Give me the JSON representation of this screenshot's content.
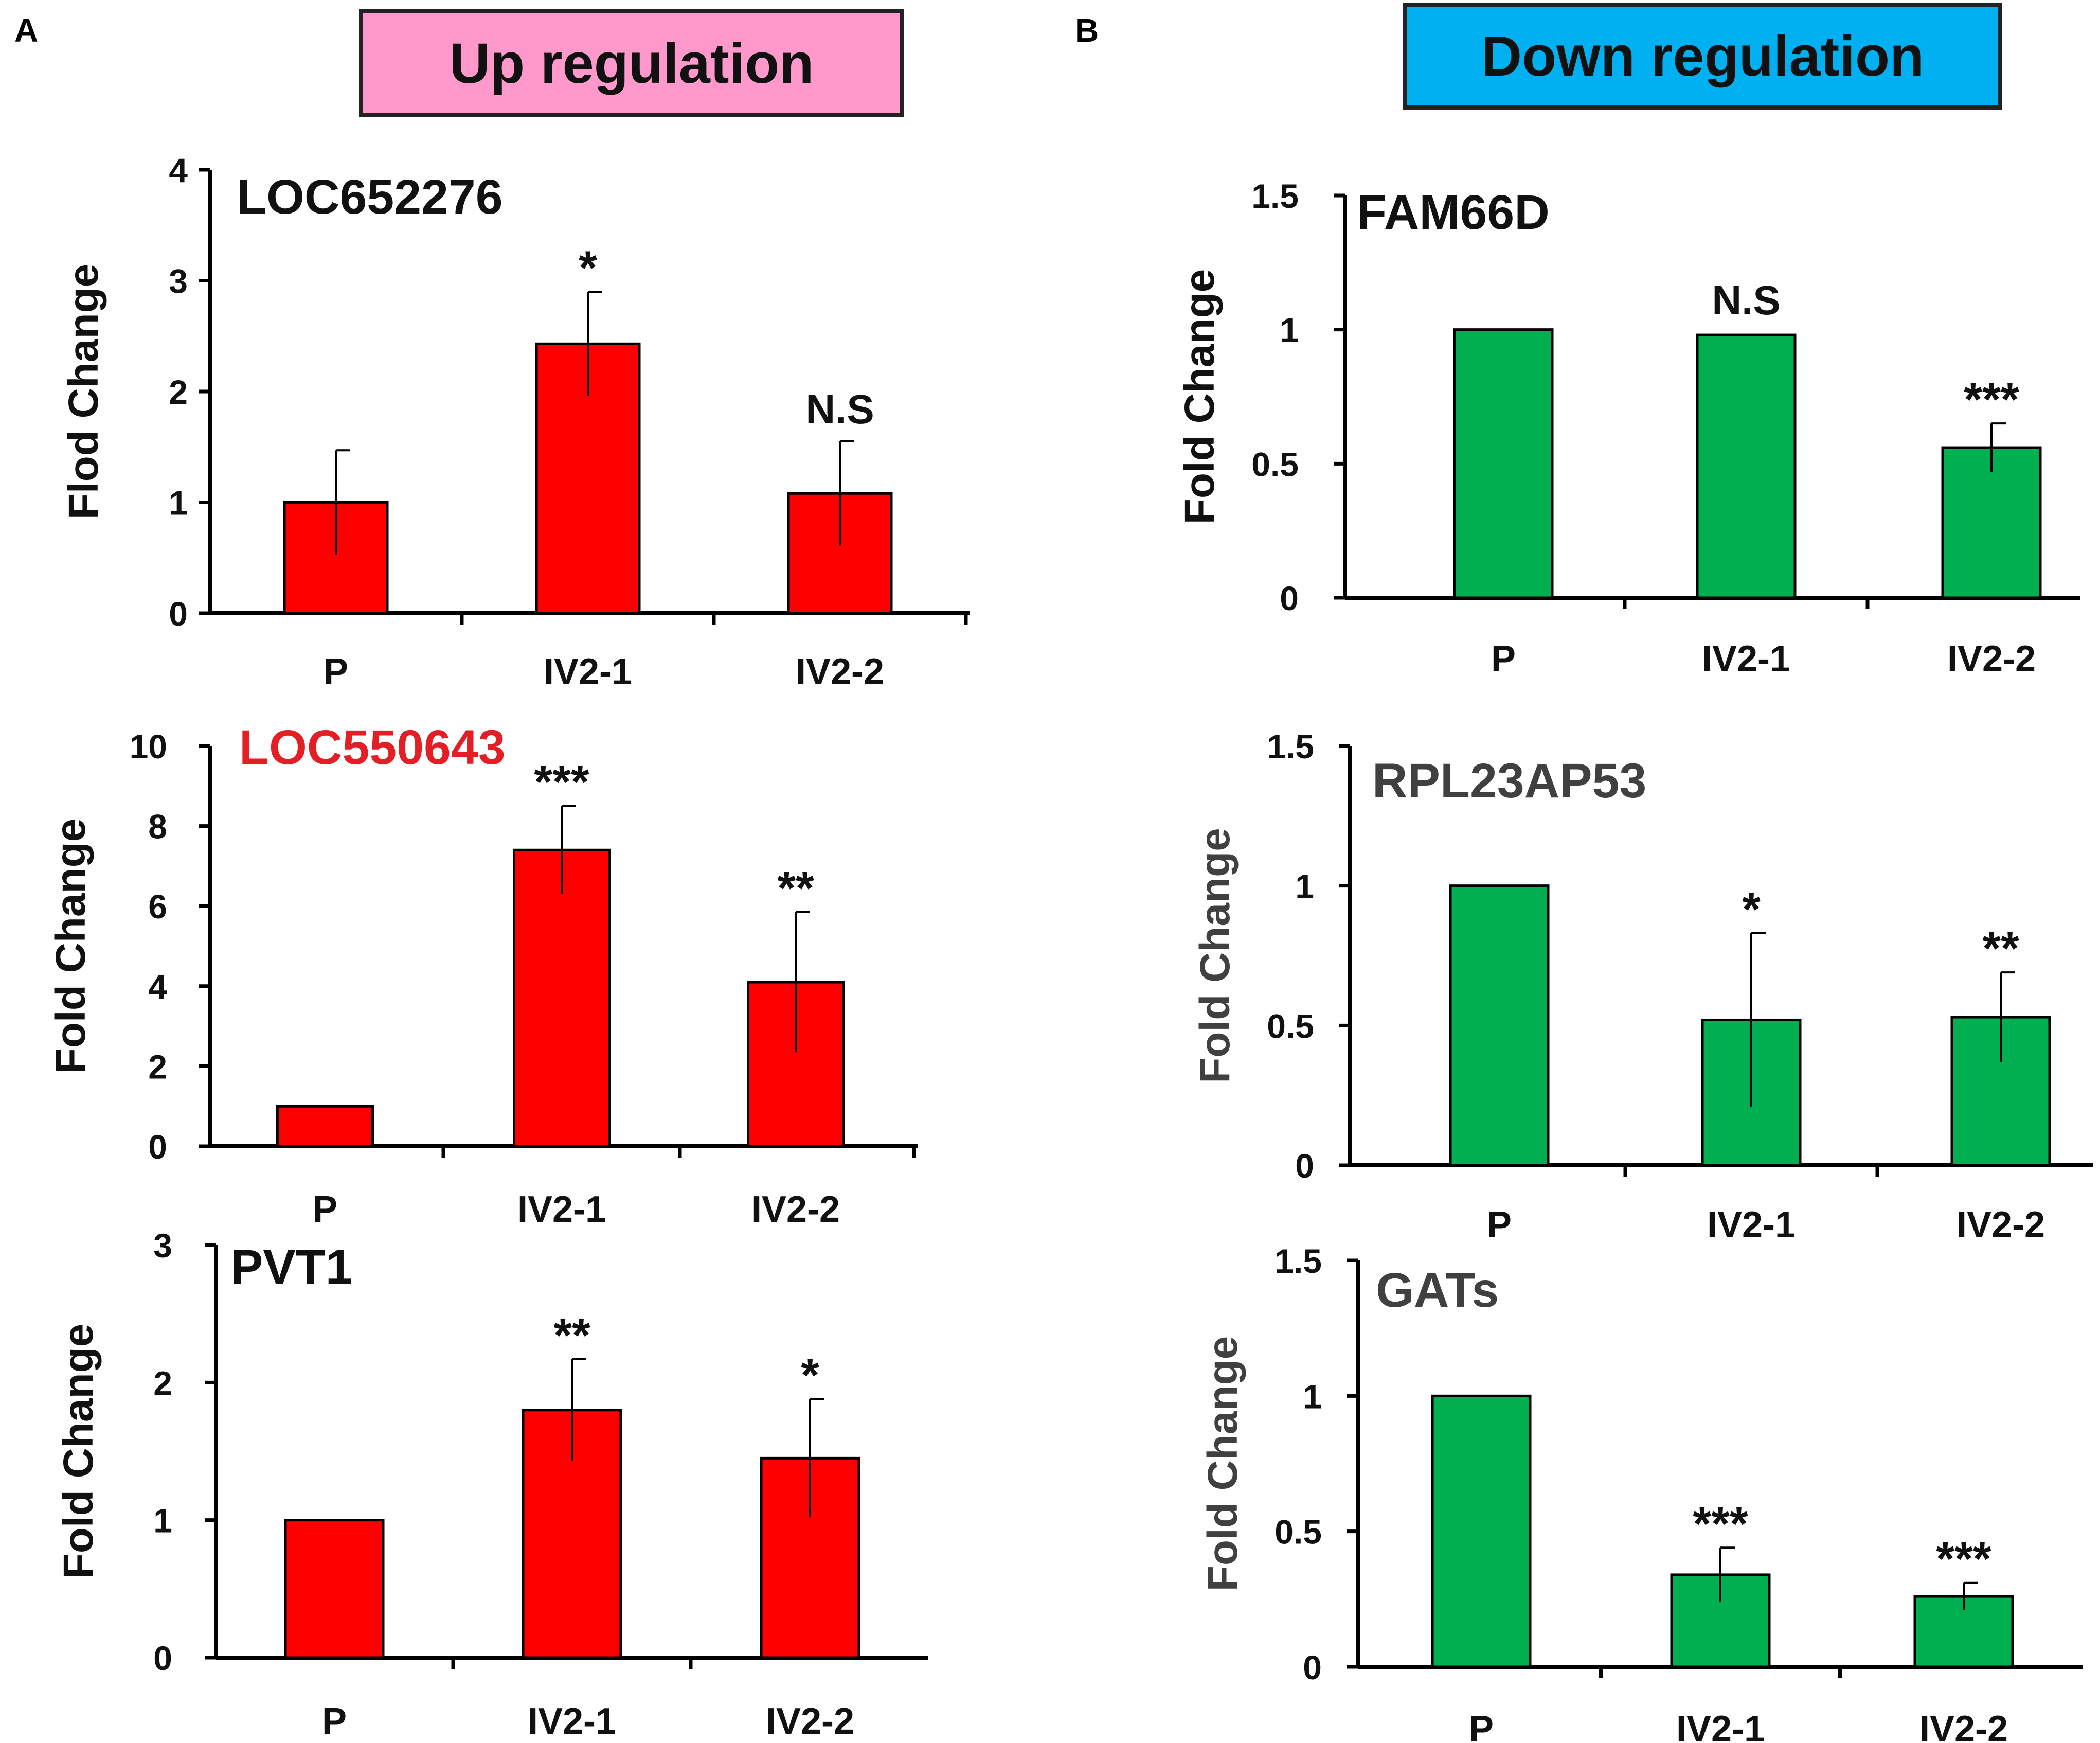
{
  "figure": {
    "panel_a_letter": "A",
    "panel_b_letter": "B",
    "panel_a_header": "Up regulation",
    "panel_b_header": "Down regulation"
  },
  "colors": {
    "header_a_bg": "#FF99CC",
    "header_b_bg": "#00B0F0",
    "bar_up": "#FF0000",
    "bar_down": "#00B050",
    "title_red": "#E31E24",
    "title_gray": "#404040"
  },
  "chart_data": [
    {
      "type": "bar",
      "panel": "A",
      "title": "LOC652276",
      "title_color": "#111111",
      "ylabel": "Flod Change",
      "categories": [
        "P",
        "IV2-1",
        "IV2-2"
      ],
      "values": [
        1.0,
        2.43,
        1.08
      ],
      "errors": [
        0.47,
        0.47,
        0.47
      ],
      "annotations": [
        "",
        "*",
        "N.S"
      ],
      "ylim": [
        0,
        4
      ],
      "yticks": [
        0,
        1,
        2,
        3,
        4
      ],
      "ytick_labels": [
        "0",
        "1",
        "2",
        "3",
        "4"
      ],
      "color": "#FF0000"
    },
    {
      "type": "bar",
      "panel": "A",
      "title": "LOC550643",
      "title_color": "#E31E24",
      "ylabel": "Fold Change",
      "categories": [
        "P",
        "IV2-1",
        "IV2-2"
      ],
      "values": [
        1.0,
        7.4,
        4.1
      ],
      "errors": [
        0,
        1.1,
        1.75
      ],
      "annotations": [
        "",
        "***",
        "**"
      ],
      "ylim": [
        0,
        10
      ],
      "yticks": [
        0,
        2,
        4,
        6,
        8,
        10
      ],
      "ytick_labels": [
        "0",
        "2",
        "4",
        "6",
        "8",
        "10"
      ],
      "color": "#FF0000"
    },
    {
      "type": "bar",
      "panel": "A",
      "title": "PVT1",
      "title_color": "#111111",
      "ylabel": "Fold Change",
      "categories": [
        "P",
        "IV2-1",
        "IV2-2"
      ],
      "values": [
        1.0,
        1.8,
        1.45
      ],
      "errors": [
        0,
        0.37,
        0.43
      ],
      "annotations": [
        "",
        "**",
        "*"
      ],
      "ylim": [
        0,
        3
      ],
      "yticks": [
        0,
        1,
        2,
        3
      ],
      "ytick_labels": [
        "0",
        "1",
        "2",
        "3"
      ],
      "color": "#FF0000"
    },
    {
      "type": "bar",
      "panel": "B",
      "title": "FAM66D",
      "title_color": "#111111",
      "ylabel": "Fold Change",
      "categories": [
        "P",
        "IV2-1",
        "IV2-2"
      ],
      "values": [
        1.0,
        0.98,
        0.56
      ],
      "errors": [
        0,
        0,
        0.09
      ],
      "annotations": [
        "",
        "N.S",
        "***"
      ],
      "ylim": [
        0,
        1.5
      ],
      "yticks": [
        0,
        0.5,
        1,
        1.5
      ],
      "ytick_labels": [
        "0",
        "0.5",
        "1",
        "1.5"
      ],
      "color": "#00B050"
    },
    {
      "type": "bar",
      "panel": "B",
      "title": "RPL23AP53",
      "title_color": "#404040",
      "ylabel": "Fold Change",
      "categories": [
        "P",
        "IV2-1",
        "IV2-2"
      ],
      "values": [
        1.0,
        0.52,
        0.53
      ],
      "errors": [
        0,
        0.31,
        0.16
      ],
      "annotations": [
        "",
        "*",
        "**"
      ],
      "ylim": [
        0,
        1.5
      ],
      "yticks": [
        0,
        0.5,
        1,
        1.5
      ],
      "ytick_labels": [
        "0",
        "0.5",
        "1",
        "1.5"
      ],
      "color": "#00B050"
    },
    {
      "type": "bar",
      "panel": "B",
      "title": "GATs",
      "title_color": "#404040",
      "ylabel": "Fold Change",
      "categories": [
        "P",
        "IV2-1",
        "IV2-2"
      ],
      "values": [
        1.0,
        0.34,
        0.26
      ],
      "errors": [
        0,
        0.1,
        0.05
      ],
      "annotations": [
        "",
        "***",
        "***"
      ],
      "ylim": [
        0,
        1.5
      ],
      "yticks": [
        0,
        0.5,
        1,
        1.5
      ],
      "ytick_labels": [
        "0",
        "0.5",
        "1",
        "1.5"
      ],
      "color": "#00B050"
    }
  ]
}
